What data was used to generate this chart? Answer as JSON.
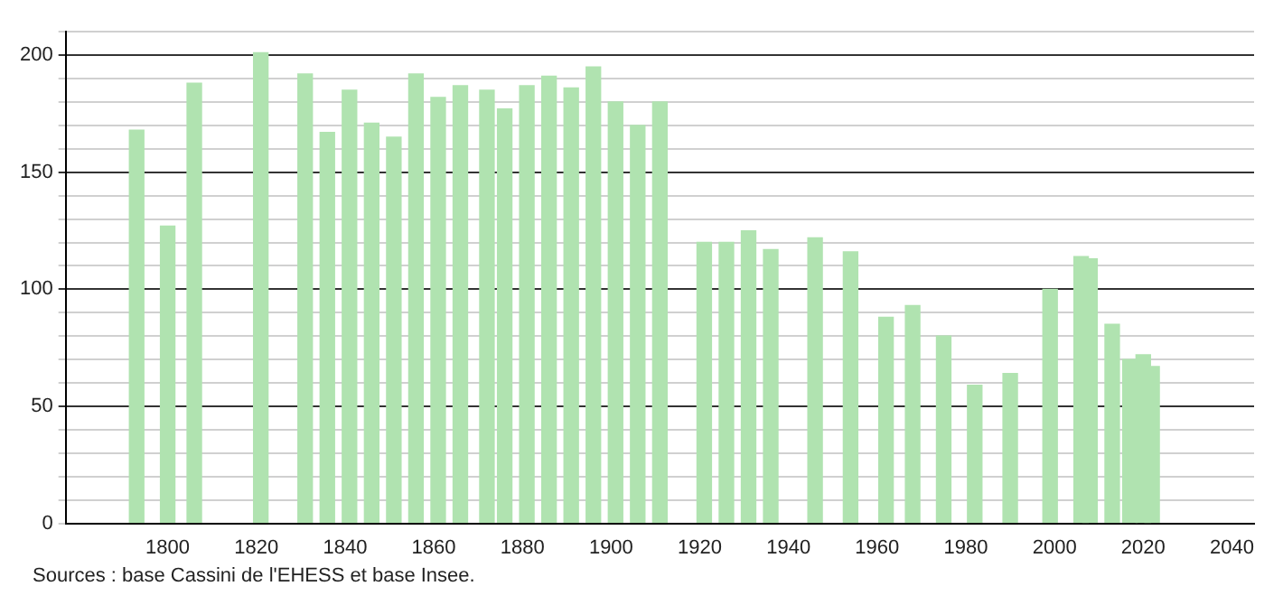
{
  "chart_data": {
    "type": "bar",
    "color": "#b0e3b0",
    "x": [
      1793,
      1800,
      1806,
      1821,
      1831,
      1836,
      1841,
      1846,
      1851,
      1856,
      1861,
      1866,
      1872,
      1876,
      1881,
      1886,
      1891,
      1896,
      1901,
      1906,
      1911,
      1921,
      1926,
      1931,
      1936,
      1946,
      1954,
      1962,
      1968,
      1975,
      1982,
      1990,
      1999,
      2006,
      2008,
      2013,
      2017,
      2020,
      2022
    ],
    "values": [
      168,
      127,
      188,
      201,
      192,
      167,
      185,
      171,
      165,
      192,
      182,
      187,
      185,
      177,
      187,
      191,
      186,
      195,
      180,
      170,
      180,
      120,
      120,
      125,
      117,
      122,
      116,
      88,
      93,
      80,
      59,
      64,
      100,
      114,
      113,
      85,
      70,
      72,
      67
    ],
    "xlim": [
      1777,
      2045
    ],
    "xticks": [
      1800,
      1820,
      1840,
      1860,
      1880,
      1900,
      1920,
      1940,
      1960,
      1980,
      2000,
      2020,
      2040
    ],
    "ylim": [
      0,
      210
    ],
    "yticks": [
      0,
      {
        "value": 10,
        "label": null
      },
      {
        "value": 20,
        "label": null
      },
      {
        "value": 30,
        "label": null
      },
      {
        "value": 40,
        "label": null
      },
      50,
      {
        "value": 60,
        "label": null
      },
      {
        "value": 70,
        "label": null
      },
      {
        "value": 80,
        "label": null
      },
      {
        "value": 90,
        "label": null
      },
      100,
      {
        "value": 110,
        "label": null
      },
      {
        "value": 120,
        "label": null
      },
      {
        "value": 130,
        "label": null
      },
      {
        "value": 140,
        "label": null
      },
      150,
      {
        "value": 160,
        "label": null
      },
      {
        "value": 170,
        "label": null
      },
      {
        "value": 180,
        "label": null
      },
      {
        "value": 190,
        "label": null
      },
      200,
      {
        "value": 210,
        "label": null
      }
    ],
    "grid": "y",
    "annotations": [
      "Sources : base Cassini de l'EHESS et base Insee."
    ]
  }
}
